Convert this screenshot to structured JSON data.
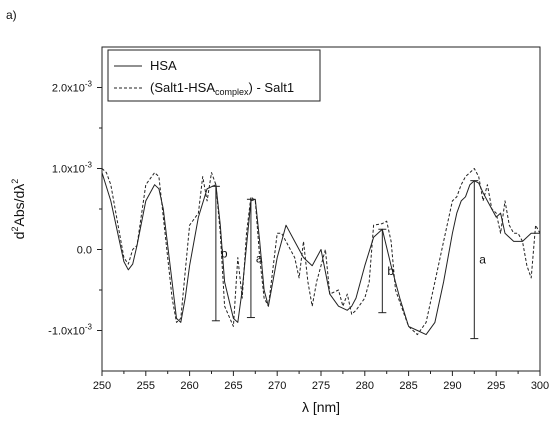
{
  "panel_label": "a)",
  "chart_data": {
    "type": "line",
    "x_label_symbol": "λ",
    "x_label_unit": "[nm]",
    "y_label_parts": {
      "base": "d",
      "sup1": "2",
      "mid": "Abs/dλ",
      "sup2": "2"
    },
    "x_ticks": [
      "250",
      "255",
      "260",
      "265",
      "270",
      "275",
      "280",
      "285",
      "290",
      "295",
      "300"
    ],
    "y_ticks": [
      {
        "value": 0.002,
        "mantissa": "2.0x10",
        "exponent": "-3"
      },
      {
        "value": 0.001,
        "mantissa": "1.0x10",
        "exponent": "-3"
      },
      {
        "value": 0.0,
        "mantissa": "0.0",
        "exponent": ""
      },
      {
        "value": -0.001,
        "mantissa": "-1.0x10",
        "exponent": "-3"
      }
    ],
    "xlim": [
      250,
      300
    ],
    "ylim": [
      -0.0015,
      0.0025
    ],
    "grid": false,
    "legend_position": "top-left",
    "series": [
      {
        "name": "HSA",
        "style": "solid",
        "x": [
          250,
          251,
          252,
          252.5,
          253,
          253.5,
          254,
          255,
          256,
          256.5,
          257,
          258,
          258.5,
          259,
          259.5,
          260,
          261,
          262,
          263,
          263.5,
          264,
          265,
          265.5,
          266,
          267,
          267.5,
          268,
          268.5,
          269,
          270,
          271,
          272,
          273,
          274,
          274.5,
          275,
          276,
          277,
          278,
          278.5,
          279,
          280,
          281,
          282,
          283,
          284,
          285,
          286,
          287,
          288,
          289,
          290,
          290.5,
          291,
          291.5,
          292,
          292.5,
          293,
          293.5,
          294,
          295,
          295.5,
          296,
          297,
          298,
          299,
          300
        ],
        "y": [
          0.00095,
          0.0006,
          0.0001,
          -0.00015,
          -0.00025,
          -0.00018,
          5e-05,
          0.0006,
          0.0008,
          0.00075,
          0.0005,
          -0.0004,
          -0.00085,
          -0.0009,
          -0.0006,
          -0.0002,
          0.0004,
          0.00075,
          0.0008,
          0.0003,
          -0.0004,
          -0.00085,
          -0.0009,
          -0.0005,
          0.0006,
          0.00062,
          0.0001,
          -0.0005,
          -0.0007,
          -0.0001,
          0.0003,
          0.0001,
          -0.0001,
          -0.0002,
          -0.0001,
          0.0,
          -0.00055,
          -0.0007,
          -0.00075,
          -0.0007,
          -0.0006,
          -0.0002,
          0.00015,
          0.00025,
          -0.0002,
          -0.0006,
          -0.00095,
          -0.001,
          -0.00105,
          -0.0009,
          -0.0004,
          0.0002,
          0.00045,
          0.0006,
          0.00065,
          0.0008,
          0.00085,
          0.00082,
          0.0007,
          0.0006,
          0.0004,
          0.00045,
          0.0002,
          0.0001,
          0.0001,
          0.0002,
          0.0002
        ]
      },
      {
        "name": "(Salt1-HSA",
        "name_subscript": "complex",
        "name_suffix": ") - Salt1",
        "style": "dashed",
        "x": [
          250,
          250.5,
          251,
          252,
          252.5,
          253,
          253.5,
          254,
          255,
          256,
          256.5,
          257,
          258,
          258.5,
          259,
          260,
          261,
          261.5,
          262,
          262.5,
          263,
          263.5,
          264,
          265,
          265.5,
          266,
          266.5,
          267,
          267.5,
          268,
          268.5,
          269,
          270,
          270.5,
          271,
          272,
          272.5,
          273,
          273.5,
          274,
          274.5,
          275,
          275.5,
          276,
          277,
          277.5,
          278,
          278.5,
          279,
          280,
          280.5,
          281,
          282,
          282.5,
          283,
          283.5,
          284,
          285,
          285.5,
          286,
          287,
          288,
          289,
          290,
          290.5,
          291,
          291.5,
          292,
          292.5,
          293,
          293.5,
          294,
          294.5,
          295,
          295.5,
          296,
          296.5,
          297,
          297.5,
          298,
          298.5,
          299,
          299.5,
          300
        ],
        "y": [
          0.001,
          0.00095,
          0.0008,
          0.0002,
          -0.0001,
          -0.00018,
          0.0,
          5e-05,
          0.0008,
          0.00095,
          0.0009,
          0.0004,
          -0.0006,
          -0.0009,
          -0.00085,
          0.0003,
          0.00045,
          0.0009,
          0.0006,
          0.00095,
          0.0008,
          0.0002,
          -0.0007,
          -0.00095,
          -0.0001,
          -0.0006,
          0.0002,
          0.00065,
          0.0006,
          -0.0001,
          -0.0006,
          -0.0007,
          0.0002,
          0.0002,
          0.0001,
          -0.0001,
          -0.00035,
          0.0001,
          -0.0004,
          -0.0007,
          -0.0004,
          -0.0002,
          0.0,
          -0.00055,
          -0.0005,
          -0.0007,
          -0.00055,
          -0.0008,
          -0.00075,
          -0.0006,
          -0.0004,
          0.0003,
          0.00032,
          0.00035,
          0.0001,
          -0.0005,
          -0.00065,
          -0.00095,
          -0.001,
          -0.00105,
          -0.0009,
          -0.0004,
          0.0001,
          0.0006,
          0.00065,
          0.0008,
          0.0009,
          0.00095,
          0.001,
          0.0009,
          0.0006,
          0.0008,
          0.0005,
          0.00045,
          0.0002,
          0.0006,
          0.0003,
          0.0002,
          0.0002,
          0.0001,
          -0.0002,
          -0.00035,
          0.0003,
          0.0002
        ]
      }
    ],
    "annotations": [
      {
        "label": "b",
        "x": 263,
        "y_top": 0.00078,
        "y_bottom": -0.00088
      },
      {
        "label": "a",
        "x": 267,
        "y_top": 0.00062,
        "y_bottom": -0.00084
      },
      {
        "label": "b",
        "x": 282,
        "y_top": 0.00025,
        "y_bottom": -0.00078
      },
      {
        "label": "a",
        "x": 292.5,
        "y_top": 0.00085,
        "y_bottom": -0.0011
      }
    ]
  }
}
